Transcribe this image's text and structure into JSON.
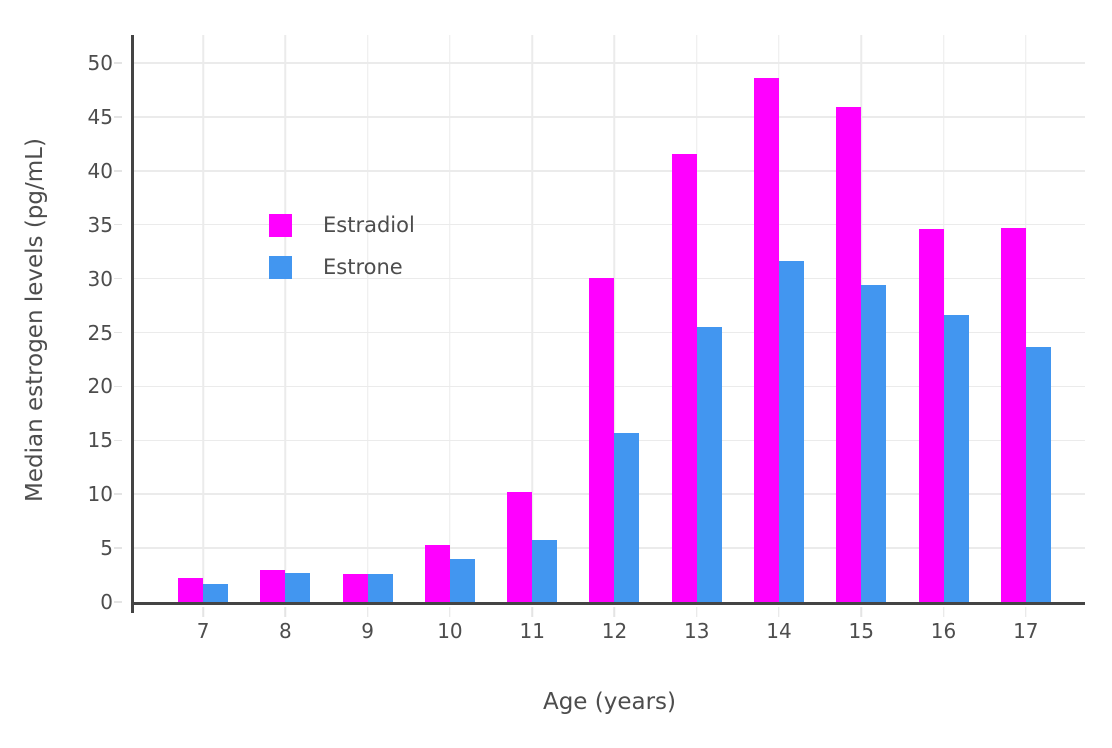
{
  "chart_data": {
    "type": "bar",
    "title": "",
    "xlabel": "Age (years)",
    "ylabel": "Median estrogen levels (pg/mL)",
    "categories": [
      "7",
      "8",
      "9",
      "10",
      "11",
      "12",
      "13",
      "14",
      "15",
      "16",
      "17"
    ],
    "series": [
      {
        "name": "Estradiol",
        "color": "#FF00FF",
        "values": [
          2.2,
          3.0,
          2.6,
          5.3,
          10.2,
          30.1,
          41.6,
          48.6,
          45.9,
          34.6,
          34.7
        ]
      },
      {
        "name": "Estrone",
        "color": "#4296F0",
        "values": [
          1.7,
          2.7,
          2.6,
          4.0,
          5.8,
          15.7,
          25.5,
          31.6,
          29.4,
          26.6,
          23.7
        ]
      }
    ],
    "ylim": [
      0,
      52.6
    ],
    "yticks": [
      0,
      5,
      10,
      15,
      20,
      25,
      30,
      35,
      40,
      45,
      50
    ],
    "grid": true,
    "legend_position": "inside-top-left",
    "colors": {
      "axis_line": "#444444",
      "grid_line": "#EBEBEB",
      "tick_mark": "#E4E4E4",
      "tick_text": "#4D4D4D",
      "background": "#FFFFFF"
    }
  }
}
